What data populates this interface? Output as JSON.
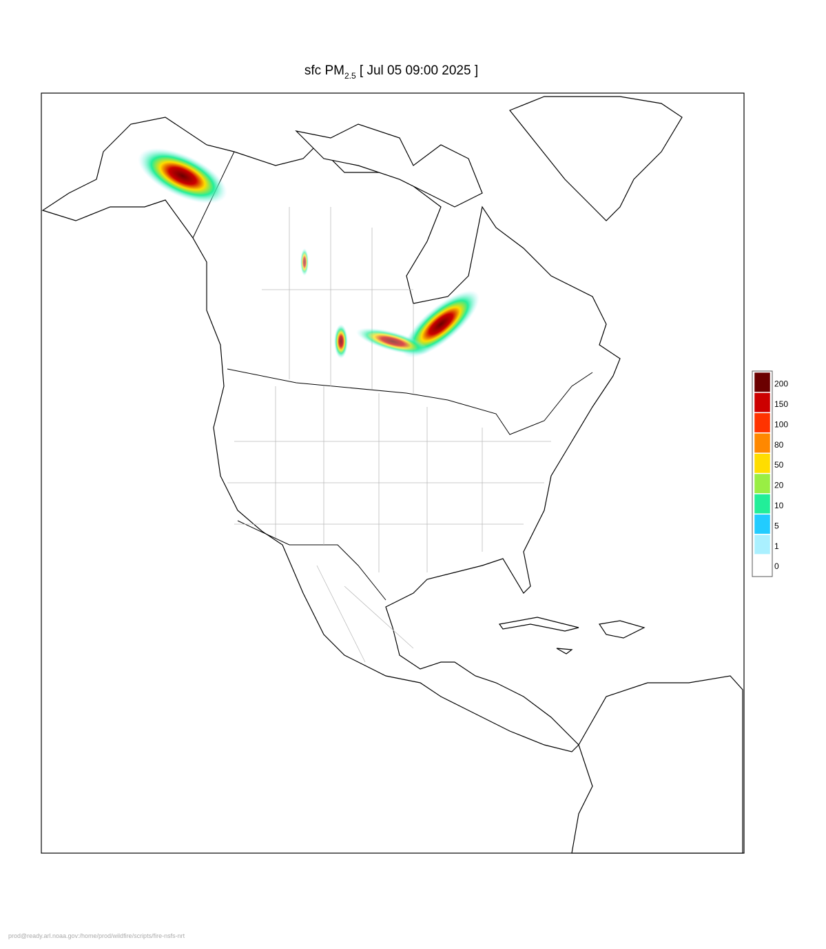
{
  "header": {
    "title_main": "sfc PM",
    "title_sub": "2.5",
    "title_rest": "[ Jul 05 09:00 2025 ]"
  },
  "legend": {
    "levels": [
      200,
      150,
      100,
      80,
      50,
      20,
      10,
      5,
      1,
      0
    ],
    "colors": [
      "#6b0000",
      "#cc0000",
      "#ff3300",
      "#ff8800",
      "#ffdd00",
      "#99ee44",
      "#22ee99",
      "#22ccff",
      "#aaf0ff",
      "#ffffff"
    ]
  },
  "footer": {
    "path": "prod@ready.arl.noaa.gov:/home/prod/wildfire/scripts/fire-nsfs-nrt"
  }
}
